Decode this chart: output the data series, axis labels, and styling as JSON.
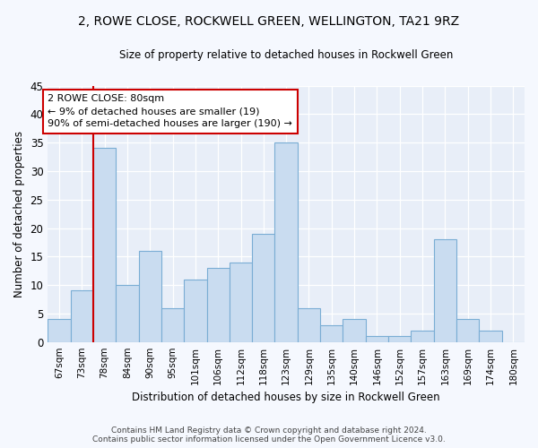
{
  "title": "2, ROWE CLOSE, ROCKWELL GREEN, WELLINGTON, TA21 9RZ",
  "subtitle": "Size of property relative to detached houses in Rockwell Green",
  "xlabel": "Distribution of detached houses by size in Rockwell Green",
  "ylabel": "Number of detached properties",
  "categories": [
    "67sqm",
    "73sqm",
    "78sqm",
    "84sqm",
    "90sqm",
    "95sqm",
    "101sqm",
    "106sqm",
    "112sqm",
    "118sqm",
    "123sqm",
    "129sqm",
    "135sqm",
    "140sqm",
    "146sqm",
    "152sqm",
    "157sqm",
    "163sqm",
    "169sqm",
    "174sqm",
    "180sqm"
  ],
  "values": [
    4,
    9,
    34,
    10,
    16,
    6,
    11,
    13,
    14,
    19,
    35,
    6,
    3,
    4,
    1,
    1,
    2,
    18,
    4,
    2,
    0
  ],
  "bar_color": "#c9dcf0",
  "bar_edge_color": "#7aadd4",
  "vline_color": "#cc0000",
  "vline_x": 2,
  "annotation_line1": "2 ROWE CLOSE: 80sqm",
  "annotation_line2": "← 9% of detached houses are smaller (19)",
  "annotation_line3": "90% of semi-detached houses are larger (190) →",
  "annotation_box_fc": "#ffffff",
  "annotation_box_ec": "#cc0000",
  "ylim": [
    0,
    45
  ],
  "yticks": [
    0,
    5,
    10,
    15,
    20,
    25,
    30,
    35,
    40,
    45
  ],
  "fig_bg": "#f5f8fe",
  "ax_bg": "#e8eef8",
  "grid_color": "#ffffff",
  "footer1": "Contains HM Land Registry data © Crown copyright and database right 2024.",
  "footer2": "Contains public sector information licensed under the Open Government Licence v3.0."
}
